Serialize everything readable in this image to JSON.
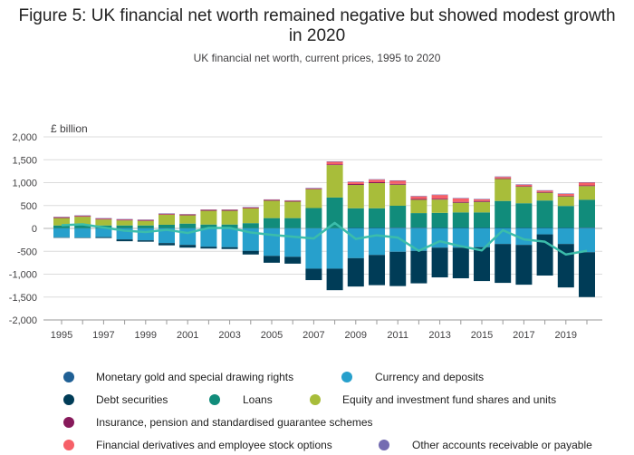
{
  "title": "Figure 5: UK financial net worth remained negative but showed modest growth in 2020",
  "subtitle": "UK financial net worth, current prices, 1995 to 2020",
  "chart_data": {
    "type": "bar",
    "stacked": true,
    "title": "Figure 5: UK financial net worth remained negative but showed modest growth in 2020",
    "subtitle": "UK financial net worth, current prices, 1995 to 2020",
    "ylabel": "£ billion",
    "xlabel": "",
    "ylim": [
      -2000,
      2000
    ],
    "yticks": [
      -2000,
      -1500,
      -1000,
      -500,
      0,
      500,
      1000,
      1500,
      2000
    ],
    "ytick_labels": [
      "-2,000",
      "-1,500",
      "-1,000",
      "-500",
      "0",
      "500",
      "1,000",
      "1,500",
      "2,000"
    ],
    "xtick_labels": [
      "1995",
      "1997",
      "1999",
      "2001",
      "2003",
      "2005",
      "2007",
      "2009",
      "2011",
      "2013",
      "2015",
      "2017",
      "2019"
    ],
    "grid": true,
    "legend_position": "bottom",
    "categories": [
      "1995",
      "1996",
      "1997",
      "1998",
      "1999",
      "2000",
      "2001",
      "2002",
      "2003",
      "2004",
      "2005",
      "2006",
      "2007",
      "2008",
      "2009",
      "2010",
      "2011",
      "2012",
      "2013",
      "2014",
      "2015",
      "2016",
      "2017",
      "2018",
      "2019",
      "2020"
    ],
    "series": [
      {
        "name": "Monetary gold and special drawing rights",
        "color": "#206095",
        "values": [
          5,
          5,
          5,
          5,
          5,
          5,
          5,
          5,
          5,
          5,
          5,
          5,
          5,
          5,
          10,
          10,
          15,
          15,
          10,
          10,
          10,
          10,
          10,
          10,
          10,
          15
        ]
      },
      {
        "name": "Currency and deposits",
        "color": "#27a0cc",
        "values": [
          -195,
          -200,
          -190,
          -240,
          -260,
          -320,
          -360,
          -400,
          -410,
          -490,
          -600,
          -620,
          -880,
          -880,
          -650,
          -580,
          -510,
          -490,
          -420,
          -420,
          -410,
          -340,
          -360,
          -130,
          -340,
          -520
        ]
      },
      {
        "name": "Debt securities",
        "color": "#003c57",
        "values": [
          -10,
          -5,
          -20,
          -40,
          -30,
          -50,
          -60,
          -40,
          -40,
          -80,
          -150,
          -150,
          -250,
          -470,
          -620,
          -660,
          -750,
          -710,
          -650,
          -670,
          -740,
          -850,
          -870,
          -900,
          -950,
          -980
        ]
      },
      {
        "name": "Loans",
        "color": "#118c7b",
        "values": [
          60,
          70,
          60,
          60,
          60,
          75,
          100,
          80,
          80,
          110,
          220,
          220,
          440,
          670,
          430,
          430,
          480,
          320,
          330,
          340,
          340,
          590,
          540,
          600,
          480,
          610
        ]
      },
      {
        "name": "Equity and investment fund shares and units",
        "color": "#a8bd3a",
        "values": [
          160,
          180,
          130,
          110,
          100,
          220,
          180,
          300,
          300,
          320,
          380,
          360,
          410,
          710,
          510,
          550,
          460,
          290,
          290,
          210,
          230,
          480,
          360,
          170,
          210,
          300
        ]
      },
      {
        "name": "Insurance, pension and standardised guarantee schemes",
        "color": "#871a5b",
        "values": [
          15,
          15,
          15,
          15,
          15,
          15,
          15,
          15,
          15,
          15,
          15,
          15,
          15,
          15,
          20,
          20,
          20,
          20,
          20,
          20,
          20,
          15,
          15,
          15,
          15,
          15
        ]
      },
      {
        "name": "Financial derivatives and employee stock options",
        "color": "#f66068",
        "values": [
          5,
          5,
          5,
          5,
          5,
          5,
          5,
          5,
          5,
          5,
          5,
          5,
          5,
          55,
          45,
          55,
          65,
          55,
          80,
          75,
          35,
          30,
          30,
          30,
          40,
          60
        ]
      },
      {
        "name": "Other accounts receivable or payable",
        "color": "#746cb1",
        "values": [
          10,
          10,
          10,
          10,
          10,
          10,
          10,
          10,
          10,
          10,
          10,
          10,
          10,
          10,
          10,
          10,
          10,
          10,
          10,
          10,
          10,
          10,
          10,
          10,
          10,
          10
        ]
      }
    ],
    "net_series": {
      "name": "Financial net worth",
      "color": "#3bbdab",
      "values": [
        70,
        90,
        20,
        -50,
        -80,
        -30,
        -100,
        10,
        10,
        -90,
        -140,
        -180,
        -220,
        120,
        -230,
        -150,
        -200,
        -490,
        -280,
        -390,
        -480,
        -40,
        -240,
        -290,
        -570,
        -490
      ]
    }
  },
  "legend": [
    {
      "label": "Monetary gold and special drawing rights",
      "color": "#206095"
    },
    {
      "label": "Currency and deposits",
      "color": "#27a0cc"
    },
    {
      "label": "Debt securities",
      "color": "#003c57"
    },
    {
      "label": "Loans",
      "color": "#118c7b"
    },
    {
      "label": "Equity and investment fund shares and units",
      "color": "#a8bd3a"
    },
    {
      "label": "Insurance, pension and standardised guarantee schemes",
      "color": "#871a5b"
    },
    {
      "label": "Financial derivatives and employee stock options",
      "color": "#f66068"
    },
    {
      "label": "Other accounts receivable or payable",
      "color": "#746cb1"
    }
  ]
}
